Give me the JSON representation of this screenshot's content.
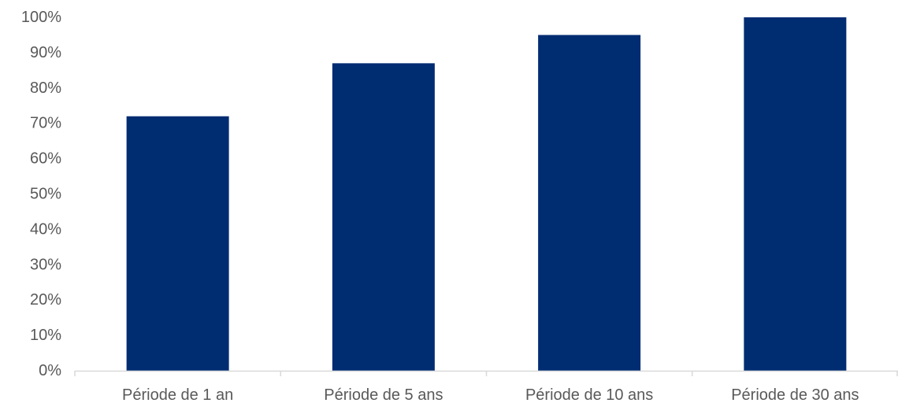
{
  "chart_data": {
    "type": "bar",
    "title": "",
    "xlabel": "",
    "ylabel": "",
    "categories": [
      "Période de 1 an",
      "Période de 5 ans",
      "Période de 10 ans",
      "Période de 30 ans"
    ],
    "values": [
      72,
      87,
      95,
      100
    ],
    "ylim": [
      0,
      100
    ],
    "yticks": [
      0,
      10,
      20,
      30,
      40,
      50,
      60,
      70,
      80,
      90,
      100
    ],
    "ytick_labels": [
      "0%",
      "10%",
      "20%",
      "30%",
      "40%",
      "50%",
      "60%",
      "70%",
      "80%",
      "90%",
      "100%"
    ],
    "grid": false,
    "legend": "none",
    "bar_color": "#002c72",
    "axis_color": "#d9d9d9"
  }
}
